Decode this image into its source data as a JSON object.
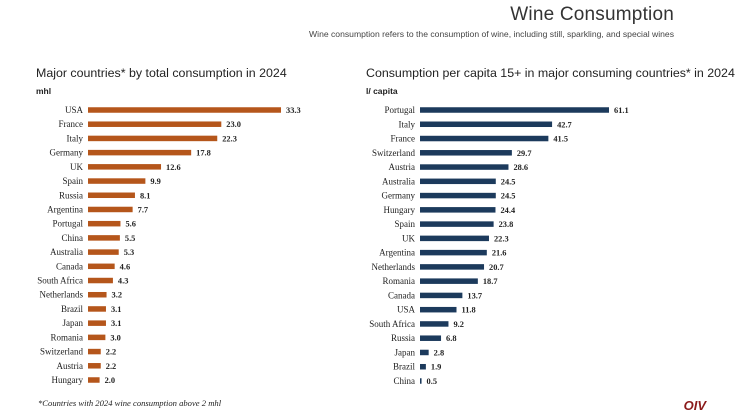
{
  "header": {
    "title": "Wine Consumption",
    "subtitle": "Wine consumption refers to the consumption of wine, including still, sparkling, and special wines"
  },
  "footnote": "*Countries with 2024 wine consumption above 2 mhl",
  "logo_text": "OIV",
  "chart_data": [
    {
      "type": "bar",
      "orientation": "horizontal",
      "title": "Major countries* by total consumption in 2024",
      "unit": "mhl",
      "color": "#b5561b",
      "categories": [
        "USA",
        "France",
        "Italy",
        "Germany",
        "UK",
        "Spain",
        "Russia",
        "Argentina",
        "Portugal",
        "China",
        "Australia",
        "Canada",
        "South Africa",
        "Netherlands",
        "Brazil",
        "Japan",
        "Romania",
        "Switzerland",
        "Austria",
        "Hungary"
      ],
      "values": [
        33.3,
        23.0,
        22.3,
        17.8,
        12.6,
        9.9,
        8.1,
        7.7,
        5.6,
        5.5,
        5.3,
        4.6,
        4.3,
        3.2,
        3.1,
        3.1,
        3.0,
        2.2,
        2.2,
        2.0
      ],
      "value_labels": [
        "33.3",
        "23.0",
        "22.3",
        "17.8",
        "12.6",
        "9.9",
        "8.1",
        "7.7",
        "5.6",
        "5.5",
        "5.3",
        "4.6",
        "4.3",
        "3.2",
        "3.1",
        "3.1",
        "3.0",
        "2.2",
        "2.2",
        "2.0"
      ],
      "xlim": [
        0,
        33.3
      ],
      "grid": false,
      "legend": "none"
    },
    {
      "type": "bar",
      "orientation": "horizontal",
      "title": "Consumption per capita 15+ in major consuming countries* in 2024",
      "unit": "l/ capita",
      "color": "#1c3a5c",
      "categories": [
        "Portugal",
        "Italy",
        "France",
        "Switzerland",
        "Austria",
        "Australia",
        "Germany",
        "Hungary",
        "Spain",
        "UK",
        "Argentina",
        "Netherlands",
        "Romania",
        "Canada",
        "USA",
        "South Africa",
        "Russia",
        "Japan",
        "Brazil",
        "China"
      ],
      "values": [
        61.1,
        42.7,
        41.5,
        29.7,
        28.6,
        24.5,
        24.5,
        24.4,
        23.8,
        22.3,
        21.6,
        20.7,
        18.7,
        13.7,
        11.8,
        9.2,
        6.8,
        2.8,
        1.9,
        0.5
      ],
      "value_labels": [
        "61.1",
        "42.7",
        "41.5",
        "29.7",
        "28.6",
        "24.5",
        "24.5",
        "24.4",
        "23.8",
        "22.3",
        "21.6",
        "20.7",
        "18.7",
        "13.7",
        "11.8",
        "9.2",
        "6.8",
        "2.8",
        "1.9",
        "0.5"
      ],
      "xlim": [
        0,
        61.1
      ],
      "grid": false,
      "legend": "none"
    }
  ]
}
